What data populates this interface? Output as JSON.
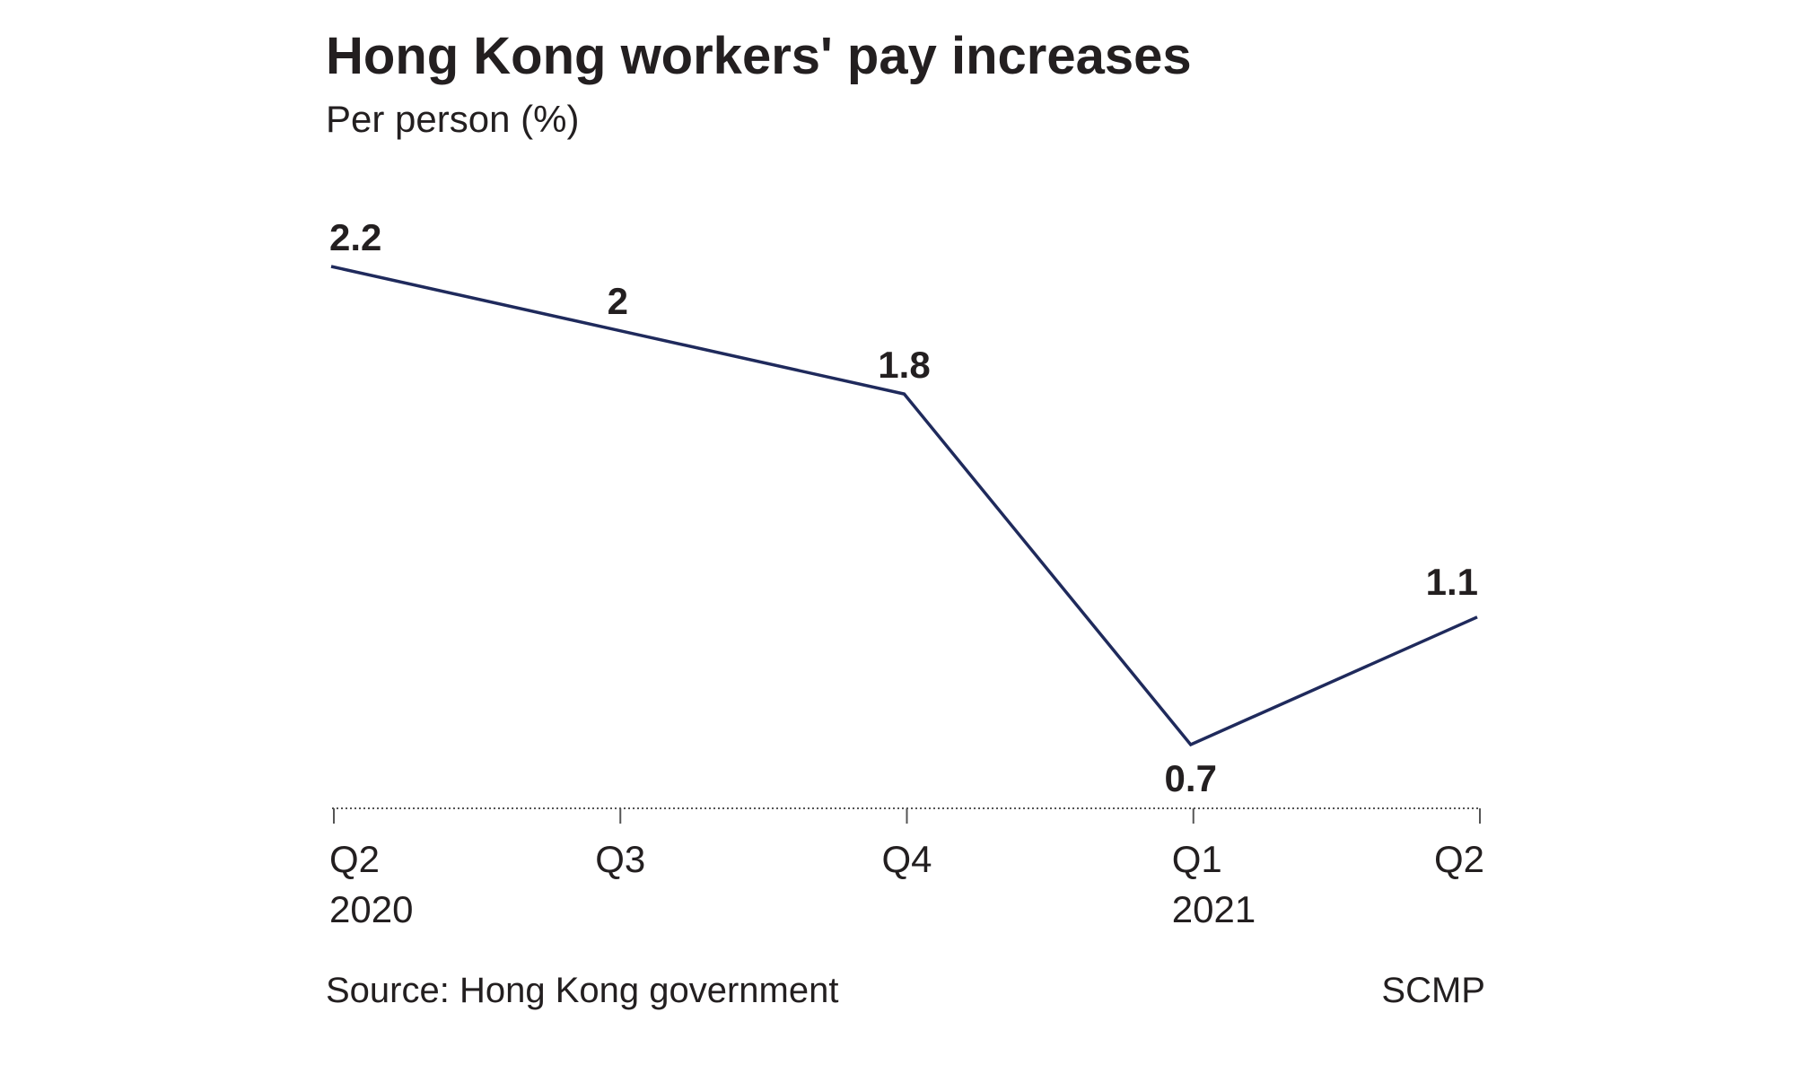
{
  "chart_data": {
    "type": "line",
    "title": "Hong Kong workers' pay increases",
    "subtitle": "Per person (%)",
    "categories": [
      {
        "quarter": "Q2",
        "year": "2020"
      },
      {
        "quarter": "Q3",
        "year": ""
      },
      {
        "quarter": "Q4",
        "year": ""
      },
      {
        "quarter": "Q1",
        "year": "2021"
      },
      {
        "quarter": "Q2",
        "year": ""
      }
    ],
    "values": [
      2.2,
      2,
      1.8,
      0.7,
      1.1
    ],
    "data_labels": [
      "2.2",
      "2",
      "1.8",
      "0.7",
      "1.1"
    ],
    "ylim": [
      0.5,
      2.2
    ],
    "grid": false,
    "line_color": "#1f2a5c",
    "source": "Source: Hong Kong government",
    "credit": "SCMP"
  }
}
